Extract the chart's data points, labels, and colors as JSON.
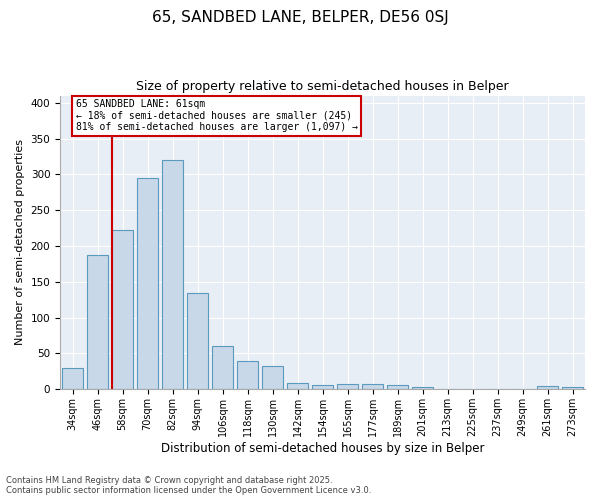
{
  "title": "65, SANDBED LANE, BELPER, DE56 0SJ",
  "subtitle": "Size of property relative to semi-detached houses in Belper",
  "xlabel": "Distribution of semi-detached houses by size in Belper",
  "ylabel": "Number of semi-detached properties",
  "categories": [
    "34sqm",
    "46sqm",
    "58sqm",
    "70sqm",
    "82sqm",
    "94sqm",
    "106sqm",
    "118sqm",
    "130sqm",
    "142sqm",
    "154sqm",
    "165sqm",
    "177sqm",
    "189sqm",
    "201sqm",
    "213sqm",
    "225sqm",
    "237sqm",
    "249sqm",
    "261sqm",
    "273sqm"
  ],
  "values": [
    30,
    188,
    222,
    295,
    320,
    135,
    60,
    40,
    32,
    9,
    6,
    7,
    7,
    6,
    3,
    1,
    1,
    0,
    0,
    4,
    3
  ],
  "bar_color": "#c8d8e8",
  "bar_edge_color": "#5a9abf",
  "annotation_line1": "65 SANDBED LANE: 61sqm",
  "annotation_line2": "← 18% of semi-detached houses are smaller (245)",
  "annotation_line3": "81% of semi-detached houses are larger (1,097) →",
  "annotation_box_color": "#ffffff",
  "annotation_box_edge": "#cc0000",
  "vline_color": "#cc0000",
  "ylim": [
    0,
    410
  ],
  "yticks": [
    0,
    50,
    100,
    150,
    200,
    250,
    300,
    350,
    400
  ],
  "background_color": "#e8eef5",
  "footer_line1": "Contains HM Land Registry data © Crown copyright and database right 2025.",
  "footer_line2": "Contains public sector information licensed under the Open Government Licence v3.0.",
  "title_fontsize": 11,
  "subtitle_fontsize": 9,
  "xlabel_fontsize": 8.5,
  "ylabel_fontsize": 8
}
